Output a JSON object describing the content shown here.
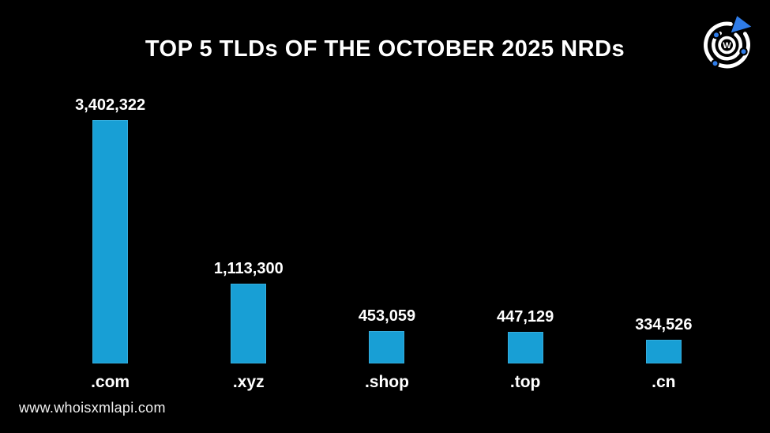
{
  "title": "TOP 5 TLDs OF THE OCTOBER 2025 NRDs",
  "chart_data": {
    "type": "bar",
    "title": "TOP 5 TLDs OF THE OCTOBER 2025 NRDs",
    "categories": [
      ".com",
      ".xyz",
      ".shop",
      ".top",
      ".cn"
    ],
    "values": [
      3402322,
      1113300,
      453059,
      447129,
      334526
    ],
    "value_labels": [
      "3,402,322",
      "1,113,300",
      "453,059",
      "447,129",
      "334,526"
    ],
    "xlabel": "",
    "ylabel": "",
    "ylim": [
      0,
      3402322
    ],
    "grid": false,
    "legend": false,
    "bar_color": "#189fd5",
    "bar_border_color": "#35aede",
    "background_color": "#000000",
    "text_color": "#ffffff"
  },
  "logo": {
    "name": "whoisxmlapi-logo",
    "letter": "W",
    "ring_color": "#ffffff",
    "accent_color": "#2f7ce8"
  },
  "footer": {
    "url": "www.whoisxmlapi.com"
  }
}
